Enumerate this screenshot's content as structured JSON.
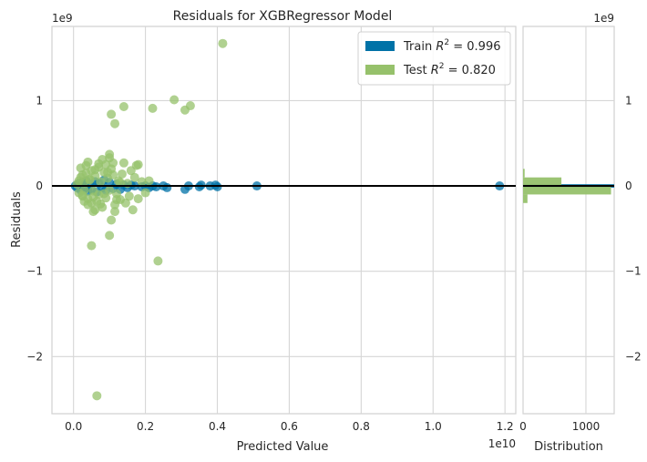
{
  "chart_data": {
    "type": "scatter",
    "title": "Residuals for XGBRegressor Model",
    "xlabel": "Predicted Value",
    "ylabel": "Residuals",
    "x_offset_text": "1e10",
    "y_offset_text": "1e9",
    "xlim": [
      -0.06,
      1.23
    ],
    "ylim": [
      -2.67,
      1.87
    ],
    "x_ticks": [
      0.0,
      0.2,
      0.4,
      0.6,
      0.8,
      1.0,
      1.2
    ],
    "x_tick_labels": [
      "0.0",
      "0.2",
      "0.4",
      "0.6",
      "0.8",
      "1.0",
      "1.2"
    ],
    "y_ticks": [
      1,
      0,
      -1,
      -2
    ],
    "y_tick_labels": [
      "1",
      "0",
      "−1",
      "−2"
    ],
    "grid": true,
    "zero_line": true,
    "legend": {
      "position": "top-right",
      "entries": [
        {
          "text": "Train R² = 0.996",
          "base": "Train ",
          "r_label": "R",
          "exp": "2",
          "value": " = 0.996",
          "color": "#0072a7"
        },
        {
          "text": "Test R² = 0.820",
          "base": "Test ",
          "r_label": "R",
          "exp": "2",
          "value": " = 0.820",
          "color": "#96c16b"
        }
      ]
    },
    "series": [
      {
        "name": "Train",
        "color": "#0072a7",
        "points": [
          [
            0.005,
            0.0
          ],
          [
            0.01,
            -0.02
          ],
          [
            0.015,
            0.03
          ],
          [
            0.02,
            -0.05
          ],
          [
            0.025,
            0.04
          ],
          [
            0.03,
            -0.03
          ],
          [
            0.035,
            0.06
          ],
          [
            0.04,
            -0.06
          ],
          [
            0.045,
            0.02
          ],
          [
            0.05,
            -0.04
          ],
          [
            0.06,
            0.05
          ],
          [
            0.065,
            -0.07
          ],
          [
            0.07,
            0.03
          ],
          [
            0.08,
            -0.02
          ],
          [
            0.085,
            0.07
          ],
          [
            0.09,
            -0.05
          ],
          [
            0.1,
            0.04
          ],
          [
            0.11,
            -0.03
          ],
          [
            0.12,
            0.02
          ],
          [
            0.13,
            -0.04
          ],
          [
            0.14,
            0.01
          ],
          [
            0.15,
            -0.02
          ],
          [
            0.16,
            0.01
          ],
          [
            0.17,
            0.0
          ],
          [
            0.19,
            -0.01
          ],
          [
            0.2,
            0.0
          ],
          [
            0.21,
            -0.02
          ],
          [
            0.22,
            0.0
          ],
          [
            0.23,
            -0.01
          ],
          [
            0.25,
            0.0
          ],
          [
            0.26,
            -0.02
          ],
          [
            0.31,
            -0.04
          ],
          [
            0.32,
            0.0
          ],
          [
            0.35,
            -0.01
          ],
          [
            0.355,
            0.01
          ],
          [
            0.38,
            0.0
          ],
          [
            0.395,
            0.01
          ],
          [
            0.4,
            -0.01
          ],
          [
            0.51,
            0.0
          ],
          [
            1.185,
            0.0
          ]
        ]
      },
      {
        "name": "Test",
        "color": "#96c16b",
        "points": [
          [
            0.01,
            0.02
          ],
          [
            0.015,
            -0.08
          ],
          [
            0.02,
            0.1
          ],
          [
            0.025,
            -0.12
          ],
          [
            0.03,
            0.05
          ],
          [
            0.03,
            -0.05
          ],
          [
            0.035,
            0.15
          ],
          [
            0.04,
            -0.15
          ],
          [
            0.045,
            0.08
          ],
          [
            0.05,
            0.18
          ],
          [
            0.05,
            -0.2
          ],
          [
            0.055,
            -0.06
          ],
          [
            0.06,
            0.12
          ],
          [
            0.065,
            -0.18
          ],
          [
            0.07,
            0.22
          ],
          [
            0.07,
            -0.1
          ],
          [
            0.075,
            0.05
          ],
          [
            0.08,
            -0.25
          ],
          [
            0.085,
            0.16
          ],
          [
            0.09,
            -0.14
          ],
          [
            0.095,
            0.09
          ],
          [
            0.1,
            -0.05
          ],
          [
            0.105,
            0.2
          ],
          [
            0.11,
            0.13
          ],
          [
            0.115,
            -0.22
          ],
          [
            0.12,
            -0.09
          ],
          [
            0.125,
            0.06
          ],
          [
            0.13,
            -0.16
          ],
          [
            0.135,
            0.14
          ],
          [
            0.14,
            0.27
          ],
          [
            0.145,
            -0.2
          ],
          [
            0.15,
            0.03
          ],
          [
            0.155,
            -0.12
          ],
          [
            0.16,
            0.18
          ],
          [
            0.165,
            -0.28
          ],
          [
            0.17,
            0.1
          ],
          [
            0.18,
            -0.15
          ],
          [
            0.19,
            0.05
          ],
          [
            0.2,
            -0.08
          ],
          [
            0.21,
            0.06
          ],
          [
            0.06,
            -0.28
          ],
          [
            0.04,
            0.28
          ],
          [
            0.08,
            0.31
          ],
          [
            0.055,
            -0.3
          ],
          [
            0.07,
            0.26
          ],
          [
            0.09,
            0.25
          ],
          [
            0.1,
            0.33
          ],
          [
            0.075,
            -0.21
          ],
          [
            0.1,
            0.37
          ],
          [
            0.105,
            0.84
          ],
          [
            0.115,
            0.73
          ],
          [
            0.14,
            0.93
          ],
          [
            0.22,
            0.91
          ],
          [
            0.28,
            1.01
          ],
          [
            0.31,
            0.89
          ],
          [
            0.325,
            0.94
          ],
          [
            0.415,
            1.67
          ],
          [
            0.18,
            0.25
          ],
          [
            0.175,
            0.24
          ],
          [
            0.11,
            0.27
          ],
          [
            0.115,
            -0.3
          ],
          [
            0.105,
            -0.4
          ],
          [
            0.1,
            -0.58
          ],
          [
            0.05,
            -0.7
          ],
          [
            0.065,
            -2.46
          ],
          [
            0.235,
            -0.88
          ],
          [
            0.12,
            -0.16
          ],
          [
            0.13,
            0.04
          ],
          [
            0.04,
            -0.22
          ],
          [
            0.02,
            0.21
          ],
          [
            0.03,
            -0.18
          ],
          [
            0.035,
            0.24
          ],
          [
            0.025,
            -0.11
          ],
          [
            0.06,
            0.19
          ],
          [
            0.045,
            0.07
          ],
          [
            0.055,
            -0.13
          ],
          [
            0.085,
            -0.09
          ],
          [
            0.095,
            0.16
          ],
          [
            0.025,
            0.13
          ],
          [
            0.015,
            0.06
          ]
        ]
      }
    ],
    "histogram": {
      "xlabel": "Distribution",
      "xlim": [
        0,
        1450
      ],
      "x_ticks": [
        0,
        1000
      ],
      "x_tick_labels": [
        "0",
        "1000"
      ],
      "right_ticks": [
        1,
        0,
        -1,
        -2
      ],
      "right_tick_labels": [
        "1",
        "0",
        "−1",
        "−2"
      ],
      "right_offset_text": "1e9",
      "bins": [
        {
          "series": "Train",
          "y0": -0.02,
          "y1": 0.02,
          "count": 1450
        },
        {
          "series": "Test",
          "y0": 0.0,
          "y1": 0.1,
          "count": 610
        },
        {
          "series": "Test",
          "y0": -0.1,
          "y1": 0.0,
          "count": 1400
        },
        {
          "series": "Test",
          "y0": 0.1,
          "y1": 0.2,
          "count": 25
        },
        {
          "series": "Test",
          "y0": -0.2,
          "y1": -0.1,
          "count": 70
        }
      ]
    }
  }
}
